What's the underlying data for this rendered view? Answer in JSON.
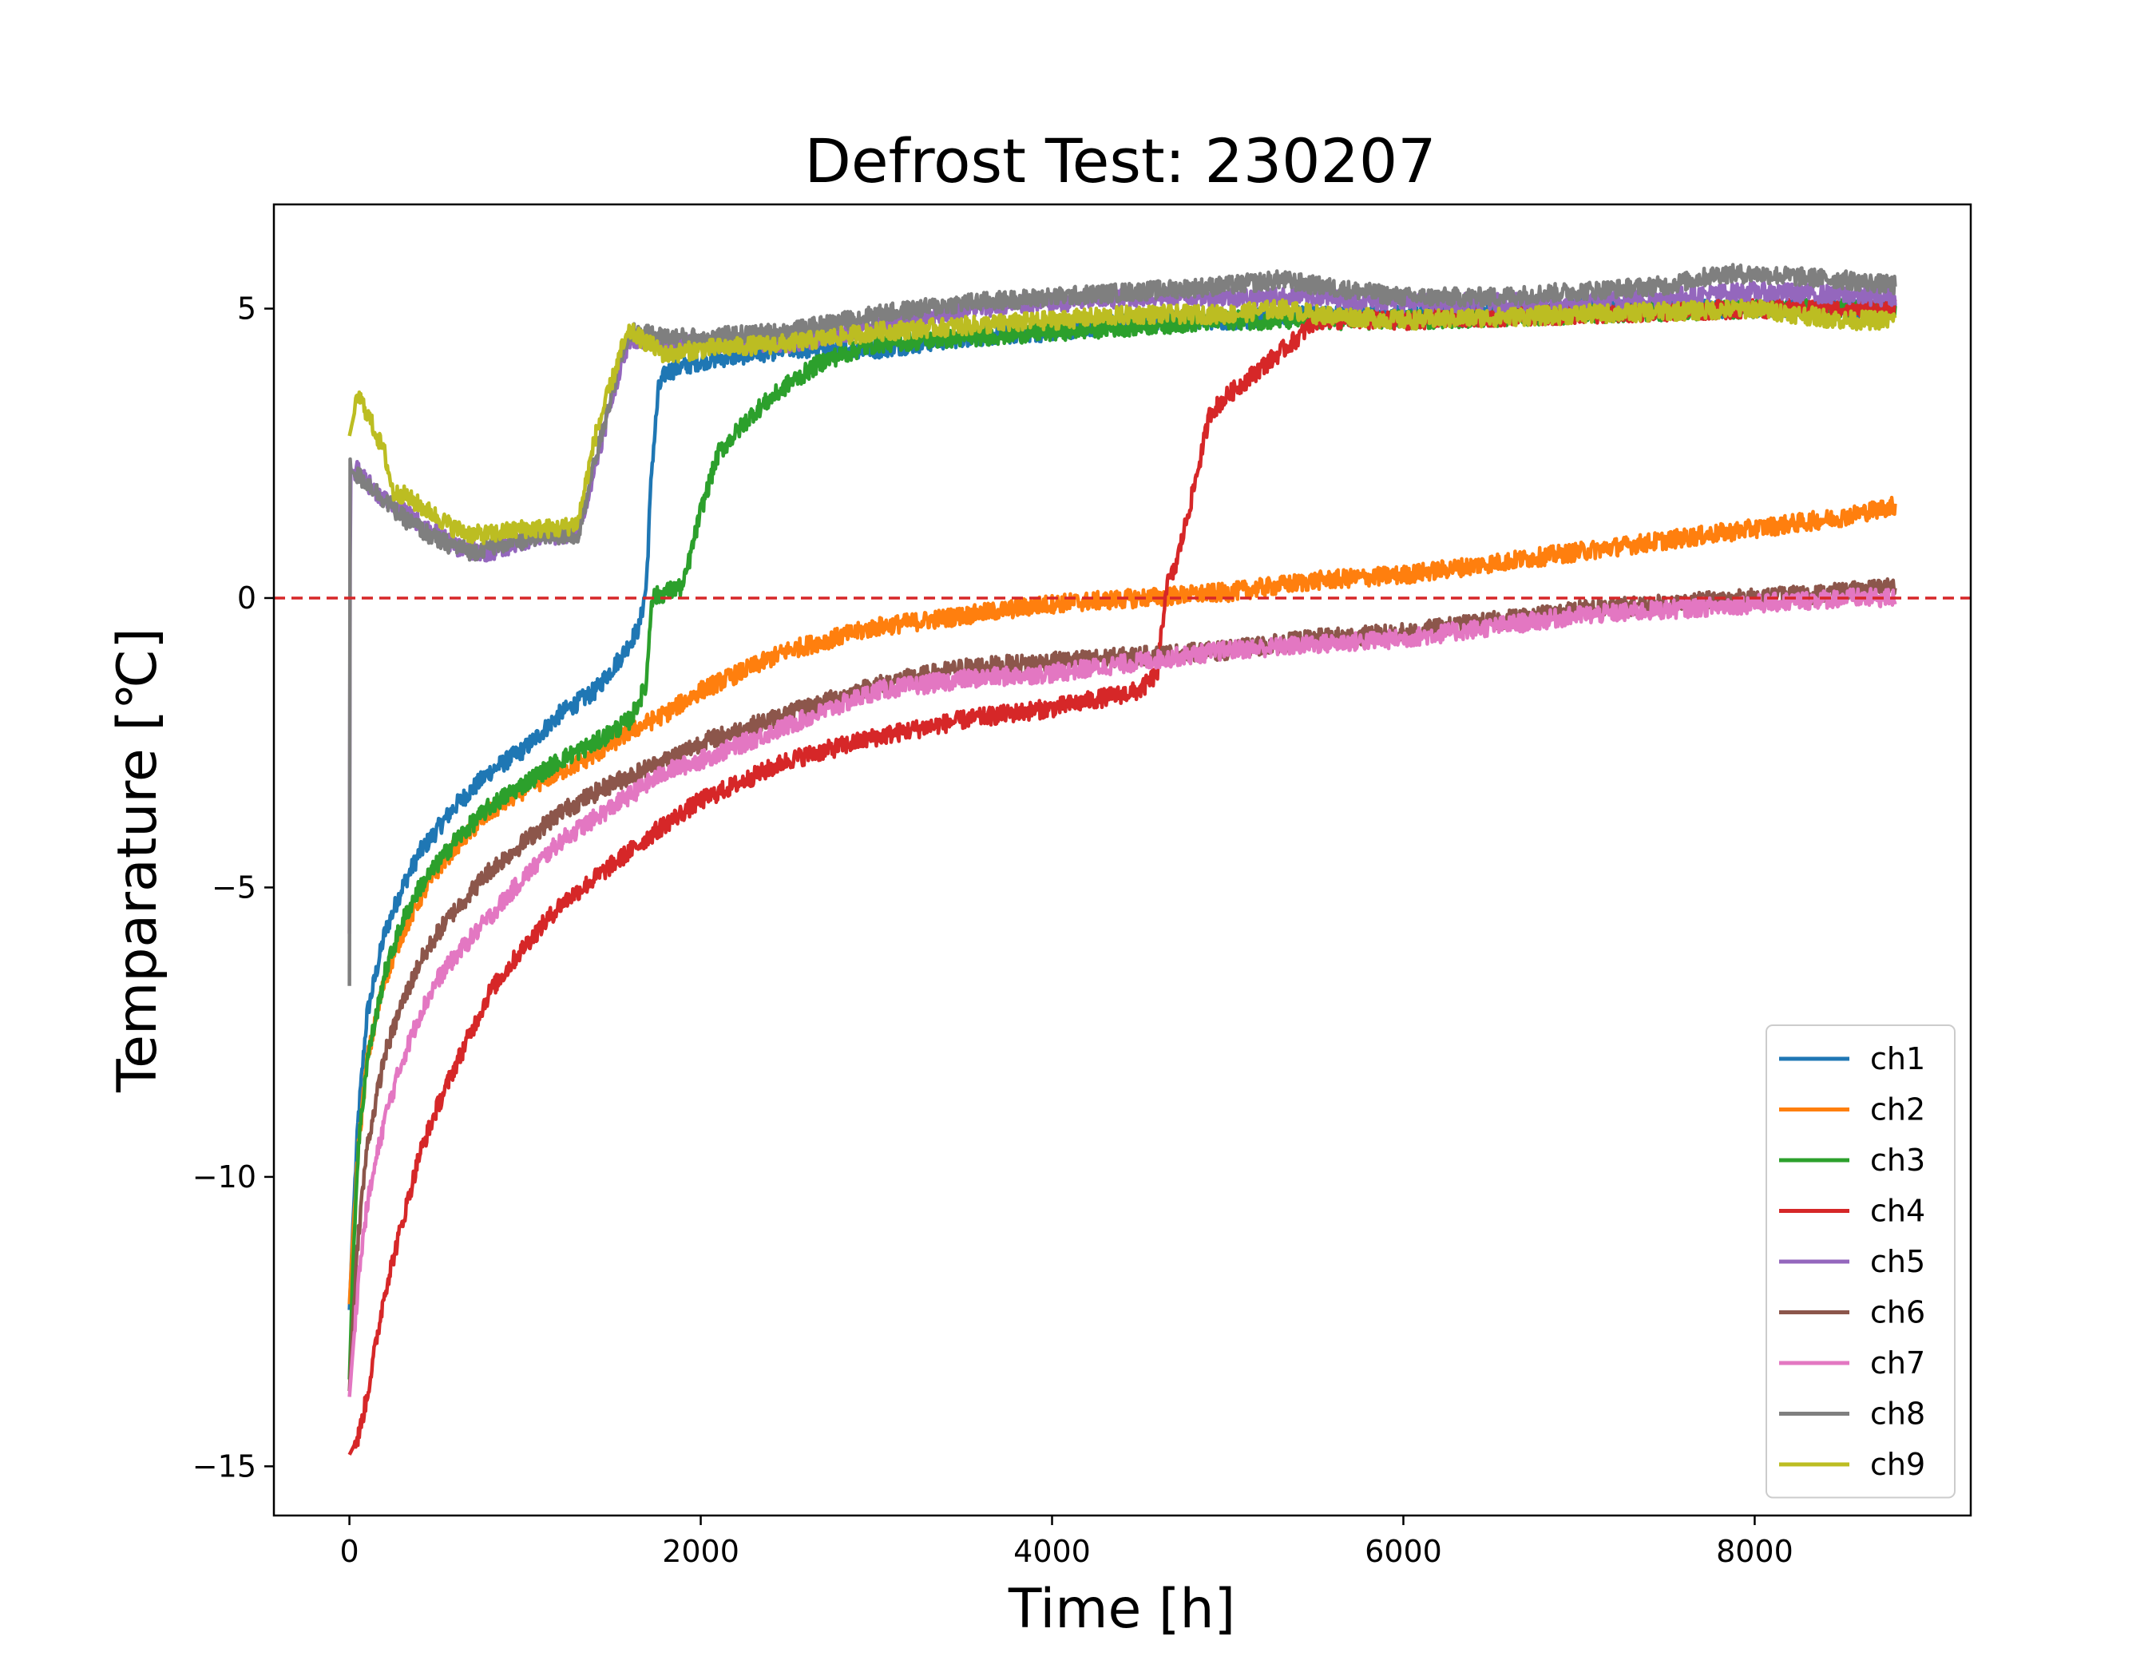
{
  "chart_data": {
    "type": "line",
    "title": "Defrost Test: 230207",
    "xlabel": "Time [h]",
    "ylabel": "Temparature [℃]",
    "xlim": [
      -430,
      9230
    ],
    "ylim": [
      -15.85,
      6.8
    ],
    "xticks": [
      0,
      2000,
      4000,
      6000,
      8000
    ],
    "xtick_labels": [
      "0",
      "2000",
      "4000",
      "6000",
      "8000"
    ],
    "yticks": [
      5,
      0,
      -5,
      -10,
      -15
    ],
    "ytick_labels": [
      "5",
      "0",
      "−5",
      "−10",
      "−15"
    ],
    "grid": false,
    "legend_position": "lower-right",
    "reference_line": {
      "y": 0,
      "color": "#d62728",
      "style": "dashed"
    },
    "series": [
      {
        "name": "ch1",
        "color": "#1f77b4",
        "x": [
          0,
          20,
          50,
          100,
          200,
          300,
          400,
          500,
          600,
          800,
          1000,
          1200,
          1400,
          1550,
          1650,
          1690,
          1720,
          1760,
          1800,
          2000,
          2500,
          3000,
          3500,
          4000,
          4500,
          5000,
          5500,
          6000,
          7000,
          8000,
          8800
        ],
        "y": [
          -12.3,
          -10.8,
          -9.0,
          -7.2,
          -5.8,
          -5.0,
          -4.4,
          -4.0,
          -3.6,
          -3.0,
          -2.6,
          -2.0,
          -1.6,
          -1.0,
          -0.5,
          0.2,
          2.2,
          3.6,
          3.9,
          4.1,
          4.3,
          4.3,
          4.5,
          4.6,
          4.8,
          4.8,
          4.9,
          4.9,
          5.0,
          5.0,
          5.0
        ]
      },
      {
        "name": "ch2",
        "color": "#ff7f0e",
        "x": [
          0,
          20,
          50,
          100,
          200,
          300,
          400,
          500,
          600,
          800,
          1000,
          1200,
          1400,
          1600,
          1800,
          2000,
          2500,
          3000,
          3500,
          4000,
          4500,
          5000,
          5500,
          6000,
          6500,
          7000,
          7500,
          8000,
          8500,
          8800
        ],
        "y": [
          -12.2,
          -11.0,
          -9.5,
          -8.0,
          -6.6,
          -5.8,
          -5.2,
          -4.7,
          -4.3,
          -3.7,
          -3.3,
          -3.0,
          -2.7,
          -2.3,
          -2.0,
          -1.6,
          -0.9,
          -0.5,
          -0.3,
          -0.1,
          0.0,
          0.1,
          0.3,
          0.4,
          0.6,
          0.8,
          1.0,
          1.2,
          1.4,
          1.6
        ]
      },
      {
        "name": "ch3",
        "color": "#2ca02c",
        "x": [
          0,
          20,
          50,
          100,
          200,
          300,
          400,
          500,
          600,
          800,
          1000,
          1200,
          1400,
          1600,
          1690,
          1720,
          1800,
          1900,
          2000,
          2100,
          2300,
          2500,
          2700,
          3000,
          3500,
          4000,
          5000,
          6000,
          7000,
          8000,
          8800
        ],
        "y": [
          -13.5,
          -11.5,
          -9.5,
          -8.0,
          -6.5,
          -5.6,
          -5.0,
          -4.6,
          -4.2,
          -3.6,
          -3.2,
          -2.8,
          -2.5,
          -2.1,
          -1.5,
          0.0,
          0.1,
          0.2,
          1.5,
          2.5,
          3.2,
          3.7,
          4.1,
          4.4,
          4.5,
          4.6,
          4.8,
          4.8,
          4.9,
          5.0,
          5.0
        ]
      },
      {
        "name": "ch4",
        "color": "#d62728",
        "x": [
          0,
          50,
          100,
          200,
          300,
          400,
          500,
          600,
          800,
          1000,
          1200,
          1500,
          1800,
          2000,
          2500,
          3000,
          3500,
          4000,
          4500,
          4600,
          4650,
          4700,
          4800,
          4900,
          5000,
          5200,
          5400,
          5500,
          6000,
          7000,
          8000,
          8800
        ],
        "y": [
          -14.8,
          -14.5,
          -13.8,
          -12.0,
          -10.8,
          -9.6,
          -8.8,
          -8.1,
          -6.8,
          -6.0,
          -5.3,
          -4.6,
          -3.9,
          -3.5,
          -2.8,
          -2.4,
          -2.1,
          -1.9,
          -1.6,
          -1.3,
          0.2,
          0.5,
          1.8,
          3.2,
          3.5,
          4.0,
          4.5,
          4.8,
          4.8,
          4.9,
          5.0,
          5.0
        ]
      },
      {
        "name": "ch5",
        "color": "#9467bd",
        "x": [
          0,
          5,
          10,
          50,
          100,
          200,
          300,
          400,
          500,
          600,
          700,
          800,
          1000,
          1200,
          1300,
          1400,
          1500,
          1550,
          1600,
          1800,
          2000,
          2500,
          3000,
          3500,
          4000,
          4500,
          5000,
          5500,
          6000,
          7000,
          8000,
          8800
        ],
        "y": [
          -5.8,
          2.3,
          2.2,
          2.2,
          2.0,
          1.7,
          1.5,
          1.3,
          1.1,
          0.9,
          0.8,
          0.8,
          1.0,
          1.1,
          1.1,
          2.3,
          3.5,
          4.1,
          4.5,
          4.4,
          4.4,
          4.4,
          4.7,
          5.0,
          5.1,
          5.2,
          5.2,
          5.2,
          5.1,
          5.1,
          5.3,
          5.2
        ]
      },
      {
        "name": "ch6",
        "color": "#8c564b",
        "x": [
          0,
          20,
          50,
          100,
          200,
          300,
          400,
          500,
          600,
          800,
          1000,
          1200,
          1500,
          1800,
          2000,
          2500,
          3000,
          3500,
          4000,
          4500,
          5000,
          5500,
          6000,
          6500,
          7000,
          7500,
          8000,
          8500,
          8800
        ],
        "y": [
          -13.7,
          -12.5,
          -11.0,
          -9.5,
          -7.9,
          -7.0,
          -6.3,
          -5.8,
          -5.4,
          -4.7,
          -4.2,
          -3.7,
          -3.2,
          -2.8,
          -2.5,
          -2.0,
          -1.5,
          -1.2,
          -1.1,
          -1.0,
          -0.9,
          -0.7,
          -0.6,
          -0.4,
          -0.2,
          -0.1,
          0.0,
          0.1,
          0.2
        ]
      },
      {
        "name": "ch7",
        "color": "#e377c2",
        "x": [
          0,
          20,
          50,
          100,
          200,
          300,
          400,
          500,
          600,
          800,
          1000,
          1200,
          1500,
          1800,
          2000,
          2500,
          3000,
          3500,
          4000,
          4500,
          5000,
          5500,
          6000,
          6500,
          7000,
          7500,
          8000,
          8500,
          8800
        ],
        "y": [
          -13.8,
          -13.0,
          -11.8,
          -10.5,
          -9.0,
          -8.0,
          -7.2,
          -6.6,
          -6.2,
          -5.5,
          -4.8,
          -4.2,
          -3.6,
          -3.0,
          -2.8,
          -2.2,
          -1.6,
          -1.4,
          -1.3,
          -1.1,
          -0.9,
          -0.8,
          -0.7,
          -0.5,
          -0.3,
          -0.2,
          -0.1,
          0.0,
          0.0
        ]
      },
      {
        "name": "ch8",
        "color": "#7f7f7f",
        "x": [
          0,
          4,
          8,
          50,
          100,
          200,
          300,
          400,
          500,
          600,
          700,
          800,
          1000,
          1200,
          1300,
          1400,
          1500,
          1550,
          1600,
          1800,
          2000,
          2500,
          3000,
          3500,
          4000,
          4500,
          5000,
          5300,
          5500,
          6000,
          6500,
          7000,
          7500,
          7800,
          8000,
          8500,
          8800
        ],
        "y": [
          -6.7,
          2.4,
          2.2,
          2.1,
          2.0,
          1.7,
          1.4,
          1.2,
          1.0,
          0.9,
          0.8,
          0.9,
          1.0,
          1.1,
          1.1,
          2.4,
          3.6,
          4.2,
          4.6,
          4.5,
          4.5,
          4.6,
          4.9,
          5.1,
          5.2,
          5.3,
          5.4,
          5.5,
          5.4,
          5.2,
          5.2,
          5.3,
          5.4,
          5.6,
          5.6,
          5.5,
          5.4
        ]
      },
      {
        "name": "ch9",
        "color": "#bcbd22",
        "x": [
          0,
          50,
          100,
          200,
          250,
          300,
          400,
          500,
          600,
          700,
          800,
          1000,
          1200,
          1300,
          1400,
          1500,
          1550,
          1600,
          1800,
          2000,
          2500,
          3000,
          3500,
          4000,
          4500,
          5000,
          5300,
          5500,
          6000,
          7000,
          8000,
          8500,
          8800
        ],
        "y": [
          2.8,
          3.5,
          3.2,
          2.5,
          1.8,
          1.8,
          1.6,
          1.4,
          1.2,
          1.1,
          1.1,
          1.2,
          1.2,
          1.3,
          2.8,
          3.8,
          4.3,
          4.6,
          4.2,
          4.3,
          4.4,
          4.6,
          4.7,
          4.8,
          4.9,
          4.9,
          5.0,
          4.9,
          4.8,
          4.9,
          5.0,
          4.8,
          4.8
        ]
      }
    ]
  }
}
